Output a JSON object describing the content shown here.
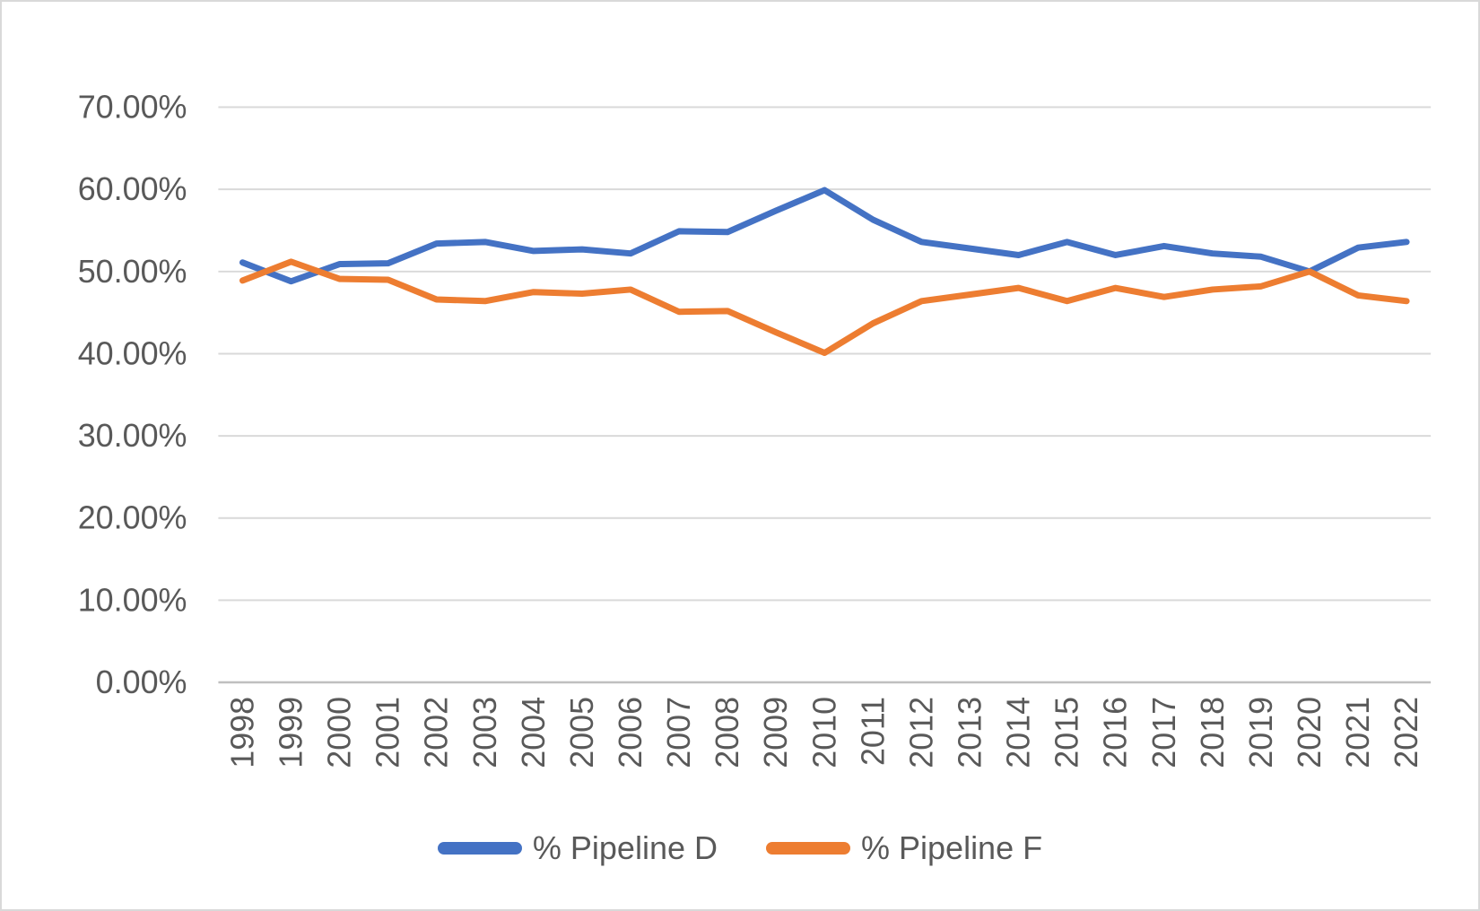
{
  "chart_data": {
    "type": "line",
    "title": "",
    "categories": [
      "1998",
      "1999",
      "2000",
      "2001",
      "2002",
      "2003",
      "2004",
      "2005",
      "2006",
      "2007",
      "2008",
      "2009",
      "2010",
      "2011",
      "2012",
      "2013",
      "2014",
      "2015",
      "2016",
      "2017",
      "2018",
      "2019",
      "2020",
      "2021",
      "2022"
    ],
    "series": [
      {
        "name": "% Pipeline D",
        "color": "#4472C4",
        "values": [
          51.1,
          48.8,
          50.9,
          51.0,
          53.4,
          53.6,
          52.5,
          52.7,
          52.2,
          54.9,
          54.8,
          57.4,
          59.9,
          56.3,
          53.6,
          52.8,
          52.0,
          53.6,
          52.0,
          53.1,
          52.2,
          51.8,
          50.0,
          52.9,
          53.6
        ]
      },
      {
        "name": "% Pipeline F",
        "color": "#ED7D31",
        "values": [
          48.9,
          51.2,
          49.1,
          49.0,
          46.6,
          46.4,
          47.5,
          47.3,
          47.8,
          45.1,
          45.2,
          42.6,
          40.1,
          43.7,
          46.4,
          47.2,
          48.0,
          46.4,
          48.0,
          46.9,
          47.8,
          48.2,
          50.0,
          47.1,
          46.4
        ]
      }
    ],
    "y_axis": {
      "min": 0,
      "max": 70,
      "step": 10,
      "tick_labels": [
        "0.00%",
        "10.00%",
        "20.00%",
        "30.00%",
        "40.00%",
        "50.00%",
        "60.00%",
        "70.00%"
      ],
      "format": "percent"
    },
    "x_axis": {
      "label_rotation": -90
    },
    "grid": true,
    "legend_position": "bottom"
  },
  "legend": {
    "items": [
      {
        "label": "% Pipeline D",
        "color": "#4472C4"
      },
      {
        "label": "% Pipeline F",
        "color": "#ED7D31"
      }
    ]
  },
  "colors": {
    "series_d": "#4472C4",
    "series_f": "#ED7D31",
    "grid": "#D9D9D9",
    "axis_line": "#BFBFBF",
    "tick_text": "#595959",
    "background": "#FFFFFF",
    "frame_border": "#D9D9D9"
  }
}
